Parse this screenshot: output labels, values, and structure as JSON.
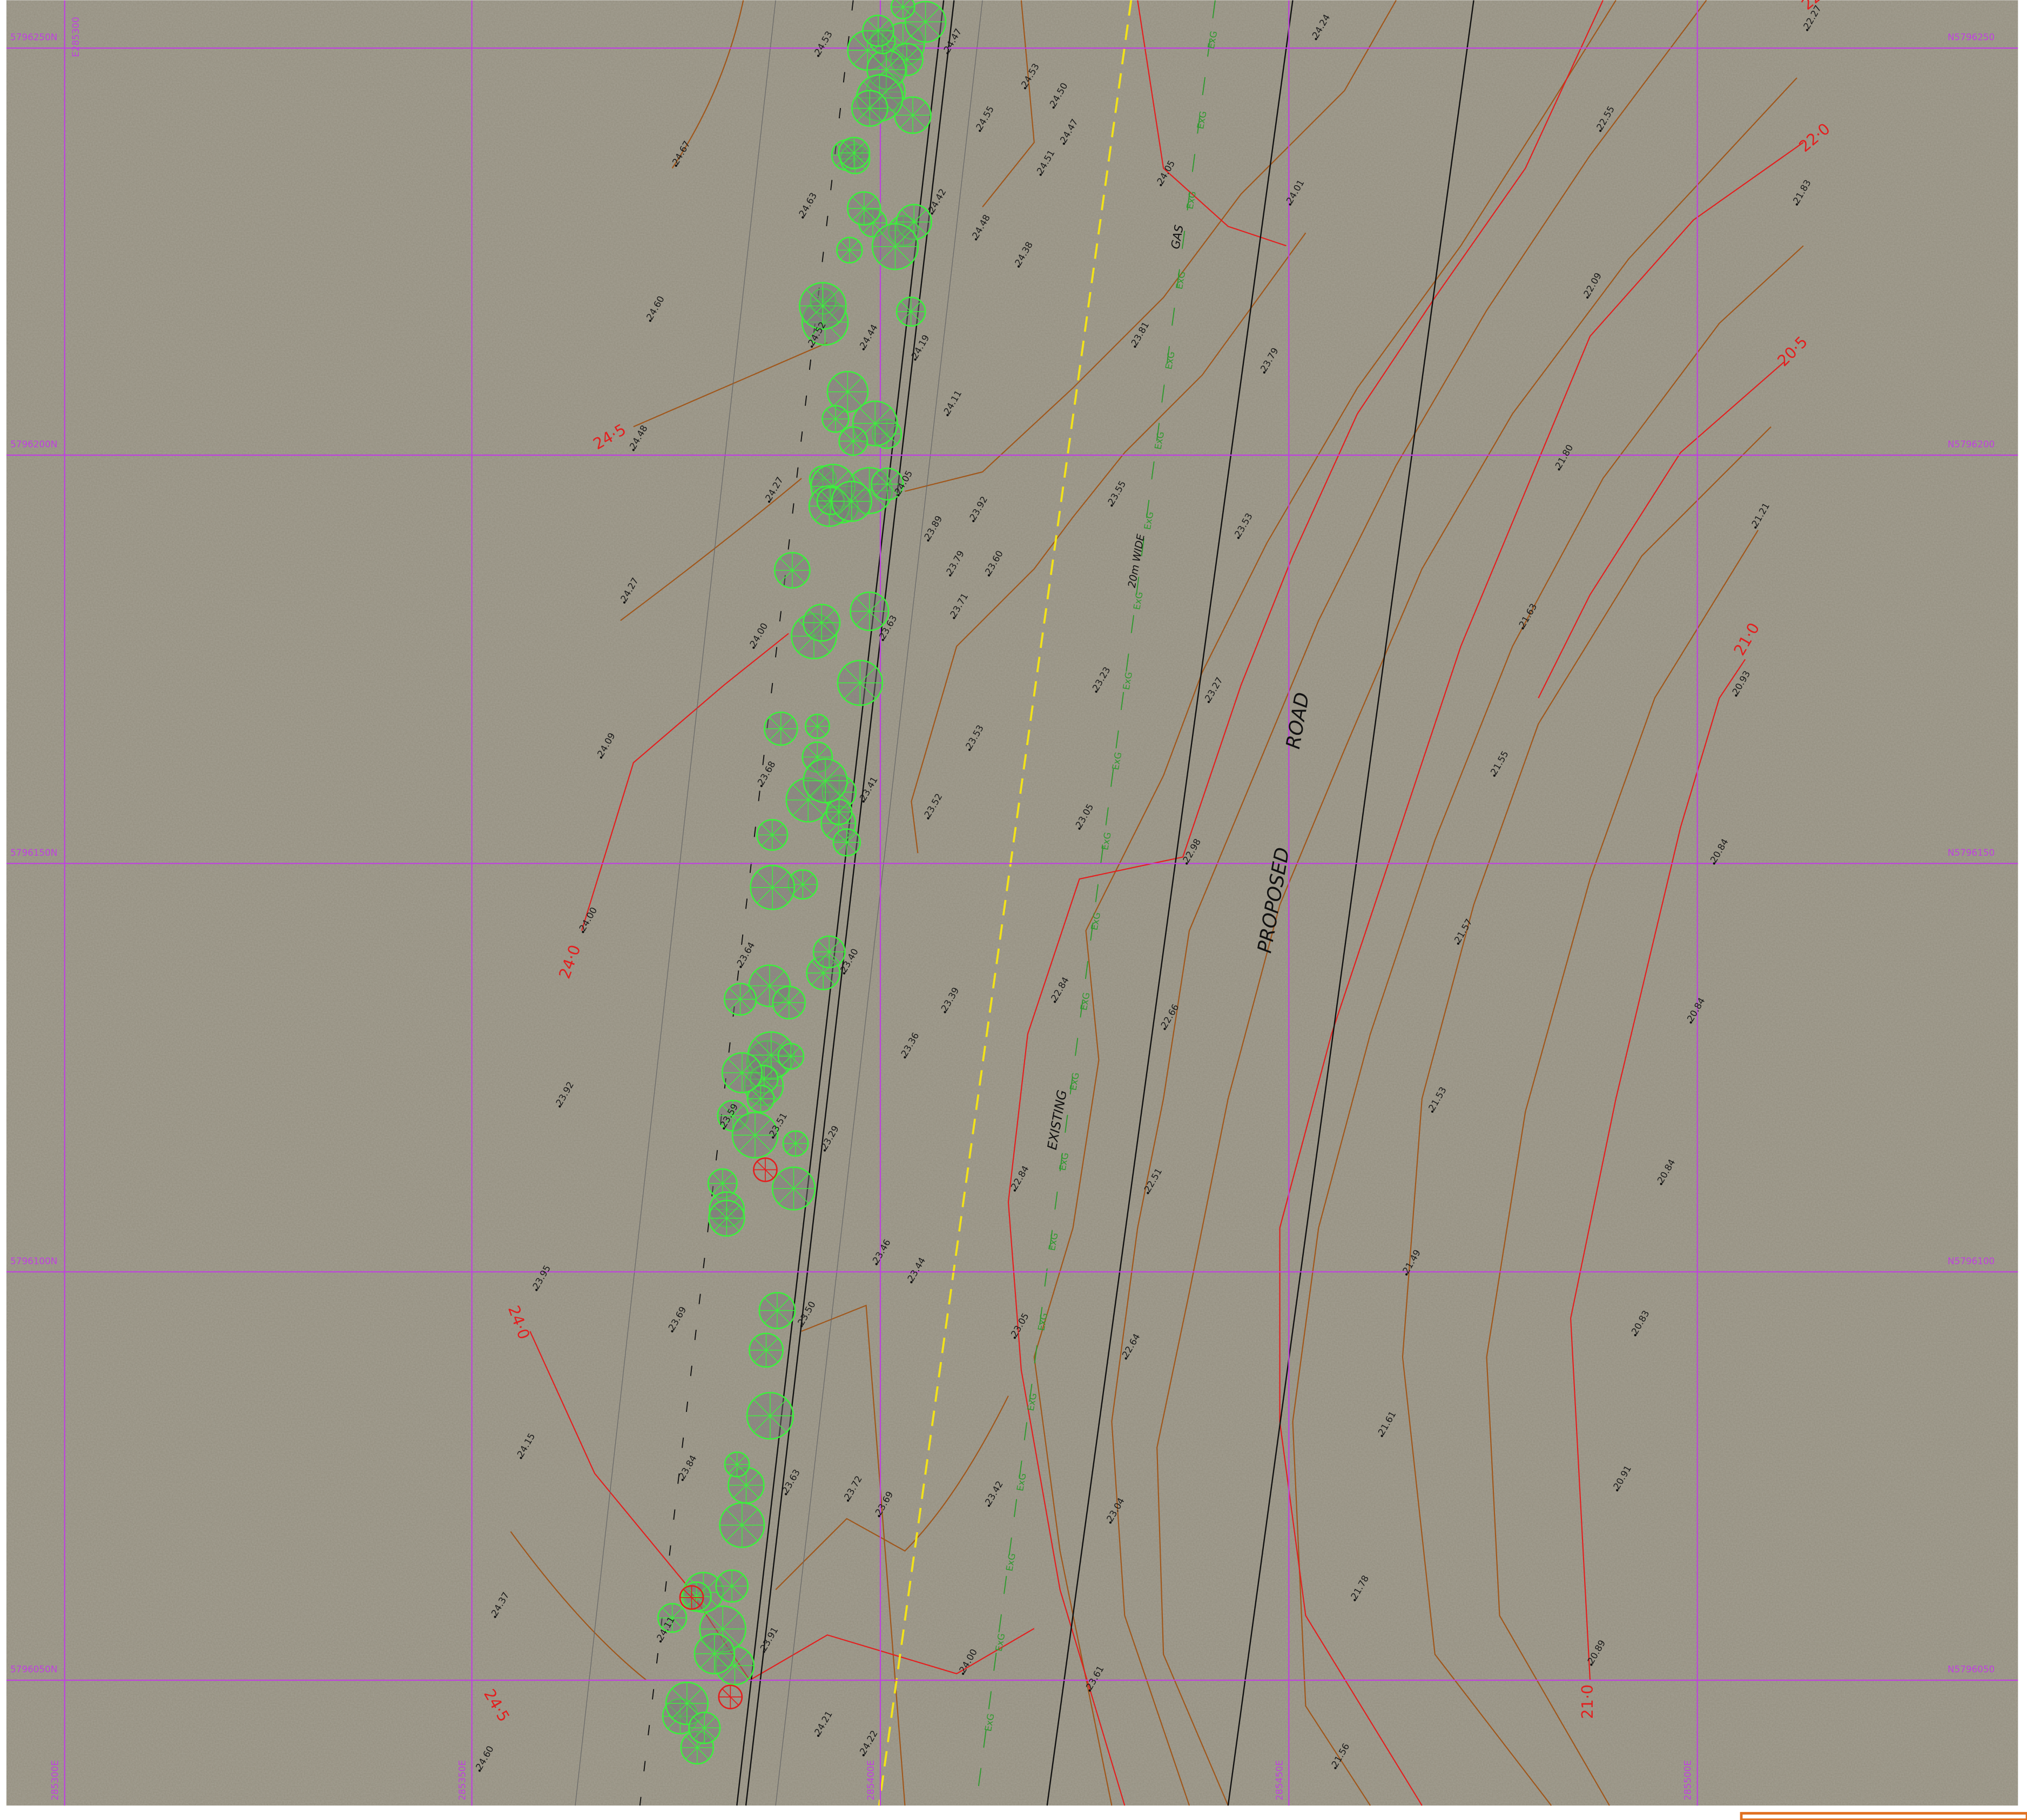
{
  "grid": {
    "easting_top": "E285300",
    "northings_left": [
      "5796250N",
      "5796200N",
      "5796150N",
      "5796100N",
      "5796050N"
    ],
    "northings_right": [
      "N5796250",
      "N5796200",
      "N5796150",
      "N5796100",
      "N5796050"
    ],
    "eastings_bottom": [
      "285300E",
      "285350E",
      "285400E",
      "285450E",
      "285500E"
    ]
  },
  "contour_labels": [
    "24·5",
    "24·0",
    "24·0",
    "24·5",
    "22·5",
    "22·0",
    "20·5",
    "21·0",
    "21·0"
  ],
  "annotations": {
    "gas": "GAS",
    "width": "20m WIDE",
    "existing": "EXISTING",
    "proposed": "PROPOSED",
    "road": "ROAD",
    "existing_gas": "ExG"
  },
  "spot_heights": [
    "24.53",
    "24.47",
    "24.53",
    "24.50",
    "24.55",
    "24.47",
    "24.51",
    "24.67",
    "24.63",
    "24.42",
    "24.48",
    "24.38",
    "24.05",
    "24.01",
    "24.24",
    "22.55",
    "22.27",
    "21.83",
    "22.09",
    "24.60",
    "24.52",
    "24.44",
    "24.19",
    "23.81",
    "23.79",
    "24.11",
    "24.48",
    "24.27",
    "24.05",
    "23.92",
    "23.89",
    "23.55",
    "23.53",
    "21.80",
    "21.21",
    "23.79",
    "23.60",
    "24.27",
    "23.71",
    "24.00",
    "23.63",
    "21.63",
    "20.93",
    "23.23",
    "23.27",
    "24.09",
    "23.53",
    "21.55",
    "23.68",
    "23.41",
    "23.52",
    "23.05",
    "22.98",
    "20.84",
    "24.00",
    "23.64",
    "23.40",
    "21.57",
    "23.39",
    "22.84",
    "22.66",
    "20.84",
    "23.36",
    "23.92",
    "23.59",
    "23.51",
    "23.29",
    "21.53",
    "22.84",
    "22.51",
    "20.84",
    "23.46",
    "23.44",
    "21.49",
    "23.95",
    "23.69",
    "23.50",
    "23.05",
    "22.64",
    "20.83",
    "24.15",
    "21.61",
    "23.84",
    "23.63",
    "23.72",
    "23.69",
    "23.42",
    "23.04",
    "20.91",
    "21.78",
    "24.37",
    "24.11",
    "23.91",
    "24.00",
    "23.61",
    "20.89",
    "24.21",
    "24.22",
    "21.56",
    "24.60"
  ]
}
